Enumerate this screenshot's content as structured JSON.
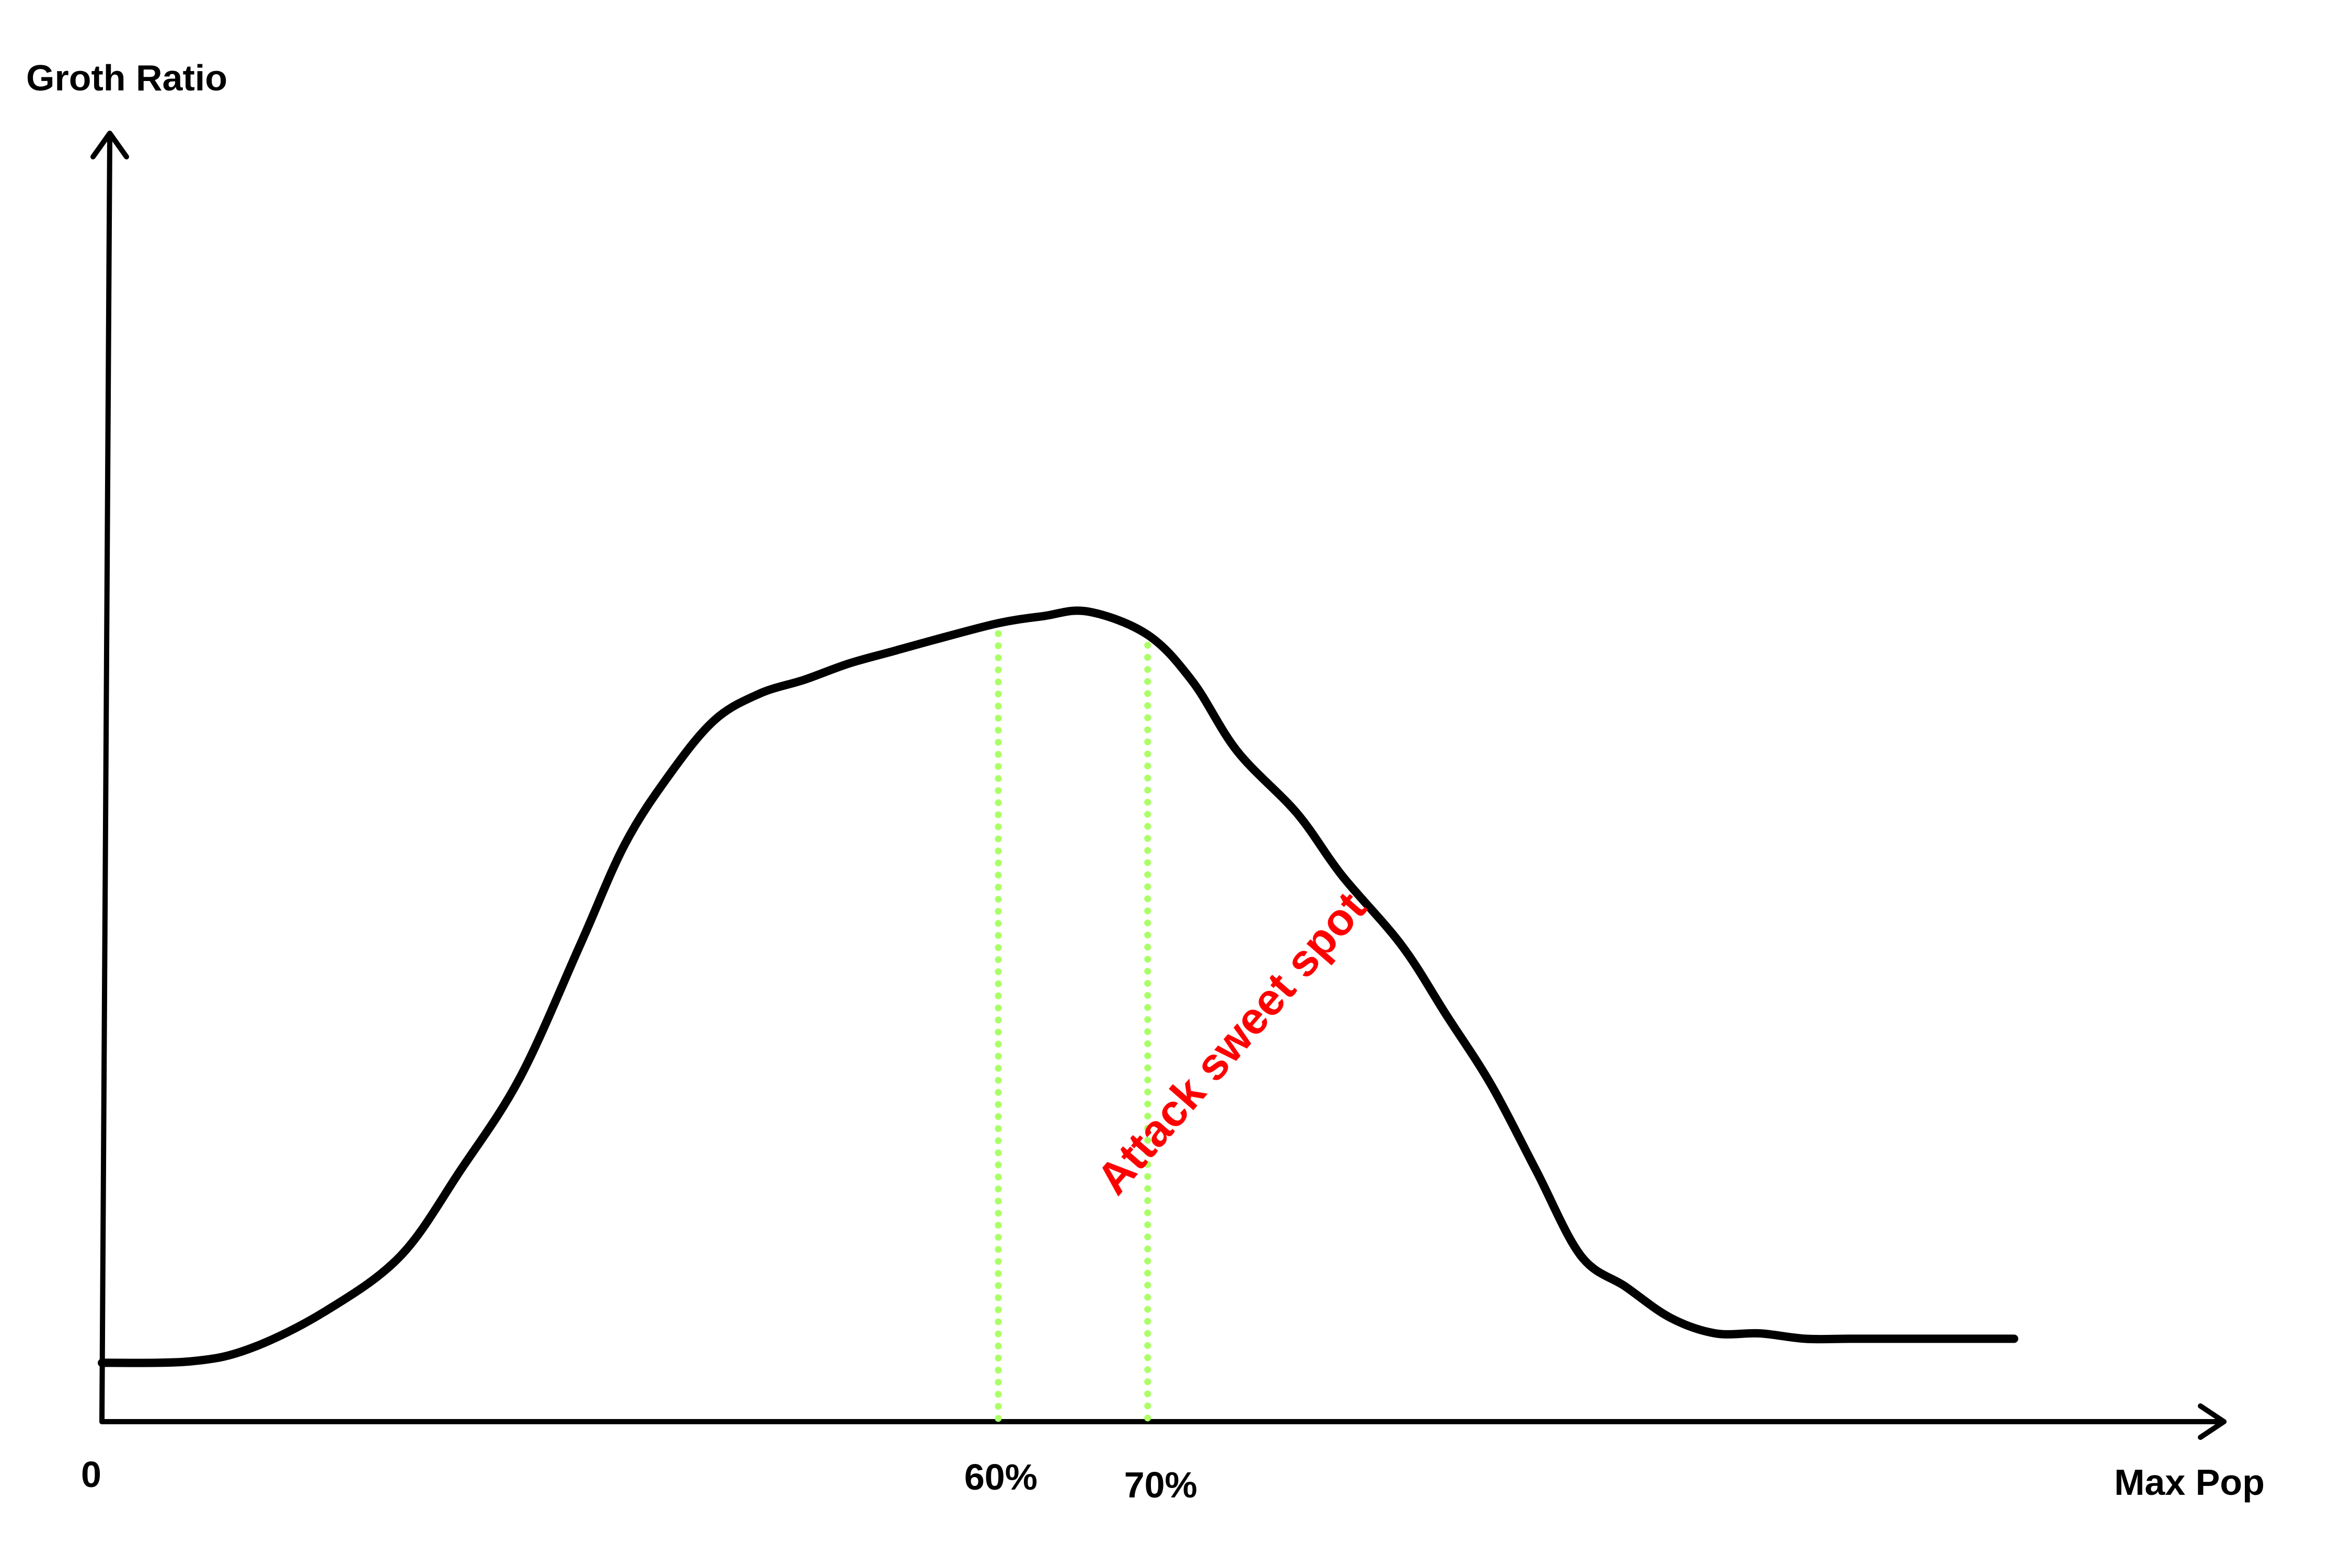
{
  "chart_data": {
    "type": "line",
    "title": "",
    "ylabel": "Groth Ratio",
    "xlabel": "Max Pop",
    "x_ticks": [
      "0",
      "60%",
      "70%"
    ],
    "x_tick_values": [
      0,
      60,
      70
    ],
    "xlim": [
      0,
      134
    ],
    "ylim": [
      0,
      100
    ],
    "grid": false,
    "legend": "none",
    "series": [
      {
        "x": [
          0,
          6,
          10,
          15,
          20,
          24,
          28,
          32,
          35,
          38,
          41,
          44,
          47,
          50,
          53,
          56,
          60,
          63,
          66,
          70,
          73,
          76,
          80,
          83,
          87,
          90,
          93,
          96,
          99,
          102,
          105,
          108,
          111,
          114,
          117,
          120,
          123,
          126,
          128
        ],
        "y": [
          3.2,
          3.4,
          5.1,
          9.9,
          17,
          28,
          40,
          57,
          70,
          79,
          86,
          89.4,
          91.2,
          93.3,
          94.9,
          96.5,
          98.5,
          99.4,
          100,
          97,
          91,
          82,
          74,
          66,
          57,
          48,
          39,
          28,
          17,
          13,
          9,
          7,
          7,
          6.3,
          6.3,
          6.3,
          6.3,
          6.3,
          6.3
        ]
      }
    ],
    "markers": [
      {
        "x": 60,
        "label": "60%"
      },
      {
        "x": 70,
        "label": "70%"
      }
    ],
    "colors": {
      "curve": "#000000",
      "axes": "#000000",
      "markers": "#aaff66",
      "annotation": "#ff0000"
    },
    "annotations": [
      {
        "text": "Attack sweet spot"
      }
    ]
  }
}
